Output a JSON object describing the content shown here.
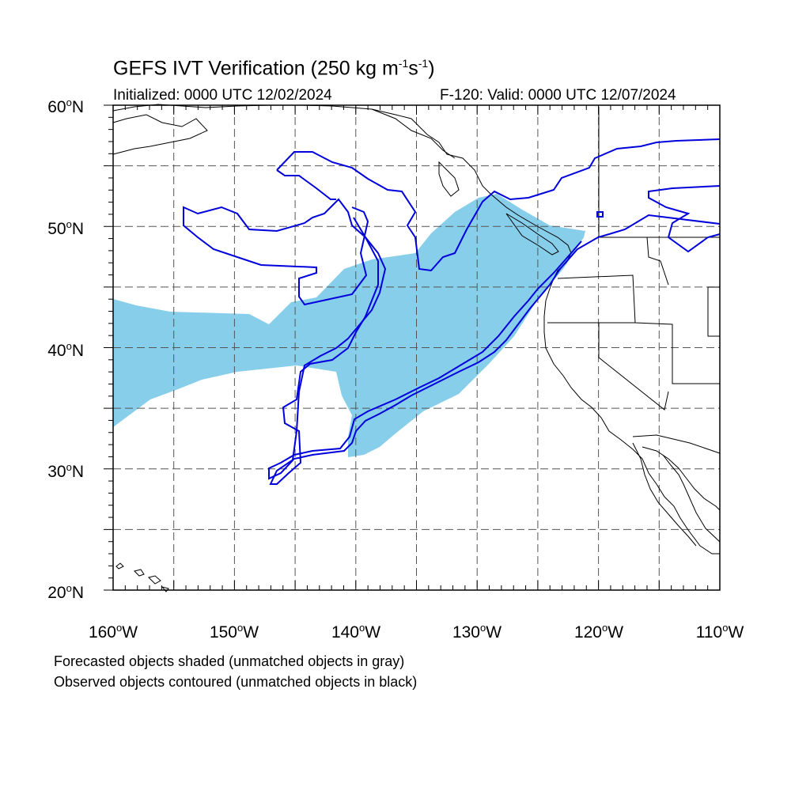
{
  "title": {
    "prefix": "GEFS IVT Verification (250 kg m",
    "sup1": "-1",
    "mid": "s",
    "sup2": "-1",
    "suffix": ")"
  },
  "initialized": "Initialized: 0000 UTC 12/02/2024",
  "valid": "F-120: Valid: 0000 UTC 12/07/2024",
  "lat_labels": [
    {
      "text": "60",
      "suffix": "N"
    },
    {
      "text": "50",
      "suffix": "N"
    },
    {
      "text": "40",
      "suffix": "N"
    },
    {
      "text": "30",
      "suffix": "N"
    },
    {
      "text": "20",
      "suffix": "N"
    }
  ],
  "lon_labels": [
    {
      "text": "160",
      "suffix": "W"
    },
    {
      "text": "150",
      "suffix": "W"
    },
    {
      "text": "140",
      "suffix": "W"
    },
    {
      "text": "130",
      "suffix": "W"
    },
    {
      "text": "120",
      "suffix": "W"
    },
    {
      "text": "110",
      "suffix": "W"
    }
  ],
  "notes": [
    "Forecasted objects shaded (unmatched objects in gray)",
    "Observed objects contoured (unmatched objects in black)"
  ],
  "map": {
    "lon_range": [
      -160,
      -110
    ],
    "lat_range": [
      20,
      60
    ],
    "grid_spacing_deg": 5,
    "grid_style": "dashed",
    "colors": {
      "forecast_fill": "#87ceeb",
      "observed_contour": "#0000dd",
      "coastline": "#000000"
    }
  }
}
